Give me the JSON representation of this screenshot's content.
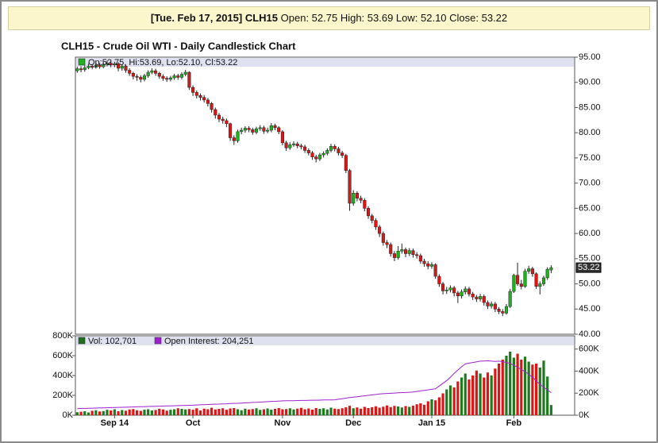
{
  "header": {
    "date": "[Tue. Feb 17, 2015]",
    "symbol": "CLH15",
    "quote": "Open: 52.75 High: 53.69 Low: 52.10 Close: 53.22"
  },
  "chart_data": {
    "type": "candlestick",
    "title": "CLH15 - Crude Oil WTI - Daily Candlestick Chart",
    "legend_price": "Op:52.75, Hi:53.69, Lo:52.10, Cl:53.22",
    "up_color": "#22b022",
    "down_color": "#dd1515",
    "xlim": [
      -0.5,
      133.3
    ],
    "xticks": [
      {
        "value": 10,
        "label": "Sep 14"
      },
      {
        "value": 31,
        "label": "Oct"
      },
      {
        "value": 55,
        "label": "Nov"
      },
      {
        "value": 74,
        "label": "Dec"
      },
      {
        "value": 95,
        "label": "Jan 15"
      },
      {
        "value": 117,
        "label": "Feb"
      }
    ],
    "ylim": [
      40,
      95
    ],
    "yticks": [
      {
        "value": 40,
        "label": "40.00"
      },
      {
        "value": 45,
        "label": "45.00"
      },
      {
        "value": 50,
        "label": "50.00"
      },
      {
        "value": 55,
        "label": "55.00"
      },
      {
        "value": 60,
        "label": "60.00"
      },
      {
        "value": 65,
        "label": "65.00"
      },
      {
        "value": 70,
        "label": "70.00"
      },
      {
        "value": 75,
        "label": "75.00"
      },
      {
        "value": 80,
        "label": "80.00"
      },
      {
        "value": 85,
        "label": "85.00"
      },
      {
        "value": 90,
        "label": "90.00"
      },
      {
        "value": 95,
        "label": "95.00"
      }
    ],
    "open": [
      92.3,
      92.7,
      92.5,
      92.9,
      93.2,
      93.0,
      93.4,
      93.1,
      93.6,
      93.8,
      93.5,
      93.7,
      92.8,
      93.2,
      92.4,
      91.8,
      91.2,
      91.0,
      90.6,
      91.3,
      92.0,
      92.3,
      91.8,
      91.2,
      90.8,
      90.6,
      90.9,
      91.3,
      91.0,
      91.6,
      92.0,
      89.0,
      88.0,
      87.4,
      87.0,
      86.5,
      85.8,
      84.6,
      83.5,
      82.7,
      82.4,
      81.8,
      79.0,
      78.4,
      80.2,
      80.5,
      80.9,
      80.6,
      80.1,
      80.8,
      81.0,
      80.3,
      80.5,
      81.4,
      81.0,
      80.2,
      78.0,
      77.0,
      77.6,
      77.8,
      77.4,
      77.2,
      76.5,
      76.0,
      75.2,
      74.8,
      75.6,
      75.9,
      76.5,
      77.3,
      76.8,
      76.0,
      75.5,
      72.5,
      66.0,
      68.0,
      67.0,
      66.6,
      65.0,
      63.5,
      62.6,
      61.3,
      60.0,
      58.2,
      57.8,
      56.0,
      55.2,
      56.5,
      56.8,
      56.0,
      56.6,
      55.8,
      55.6,
      54.5,
      54.0,
      53.5,
      53.8,
      51.5,
      50.0,
      48.6,
      48.8,
      49.2,
      48.2,
      47.6,
      48.4,
      49.0,
      48.0,
      47.4,
      47.0,
      47.5,
      46.3,
      45.6,
      46.0,
      45.0,
      44.5,
      44.2,
      45.5,
      48.5,
      51.7,
      50.0,
      49.5,
      52.5,
      53.0,
      52.0,
      49.5,
      50.0,
      51.2,
      52.75
    ],
    "high": [
      93.1,
      93.2,
      93.4,
      93.7,
      93.6,
      93.9,
      93.8,
      94.0,
      94.3,
      94.2,
      94.1,
      94.0,
      93.6,
      93.5,
      92.8,
      92.1,
      91.6,
      91.4,
      91.7,
      92.4,
      92.8,
      92.7,
      92.1,
      91.6,
      91.2,
      91.3,
      91.7,
      91.7,
      92.0,
      92.5,
      92.2,
      89.4,
      88.4,
      87.8,
      87.5,
      86.9,
      86.1,
      85.0,
      83.9,
      83.2,
      82.8,
      82.0,
      79.5,
      80.6,
      81.0,
      81.3,
      81.3,
      81.0,
      81.2,
      81.5,
      81.4,
      81.0,
      81.9,
      81.8,
      81.3,
      80.5,
      78.4,
      78.1,
      78.3,
      78.2,
      77.8,
      77.6,
      76.9,
      76.4,
      75.6,
      76.0,
      76.3,
      76.9,
      77.8,
      77.7,
      77.2,
      76.4,
      75.8,
      72.8,
      68.6,
      68.4,
      67.5,
      67.0,
      65.4,
      63.9,
      63.0,
      61.7,
      60.4,
      58.7,
      58.2,
      56.5,
      57.5,
      58.0,
      57.2,
      57.1,
      57.0,
      56.3,
      56.0,
      55.0,
      54.5,
      54.3,
      54.1,
      51.9,
      50.4,
      49.4,
      49.7,
      49.6,
      48.6,
      48.9,
      49.5,
      49.4,
      48.4,
      47.8,
      48.0,
      47.9,
      46.7,
      46.5,
      46.4,
      45.4,
      45.0,
      46.0,
      49.0,
      52.0,
      54.2,
      50.8,
      53.0,
      53.6,
      53.4,
      52.3,
      50.5,
      51.6,
      53.3,
      53.69
    ],
    "low": [
      91.9,
      92.0,
      92.1,
      92.6,
      92.6,
      92.7,
      92.7,
      92.8,
      93.2,
      93.0,
      93.0,
      92.2,
      92.3,
      91.9,
      91.3,
      90.6,
      90.3,
      90.0,
      90.2,
      90.9,
      91.6,
      91.3,
      90.7,
      90.3,
      90.1,
      90.2,
      90.5,
      90.5,
      90.6,
      91.2,
      88.5,
      87.3,
      86.8,
      86.4,
      86.0,
      85.2,
      84.0,
      82.8,
      82.1,
      81.8,
      81.1,
      78.4,
      77.6,
      78.0,
      79.7,
      80.0,
      80.1,
      79.6,
      79.7,
      80.4,
      79.8,
      79.9,
      80.1,
      80.5,
      79.7,
      77.5,
      76.4,
      76.6,
      77.2,
      76.9,
      76.7,
      76.0,
      75.5,
      74.6,
      74.1,
      74.4,
      75.1,
      75.5,
      76.1,
      76.3,
      75.5,
      75.0,
      72.0,
      64.5,
      65.5,
      66.4,
      66.0,
      64.4,
      62.9,
      62.0,
      60.7,
      59.3,
      57.6,
      57.1,
      55.4,
      54.5,
      54.8,
      56.0,
      55.3,
      55.5,
      55.2,
      55.0,
      54.0,
      53.4,
      52.9,
      53.0,
      51.0,
      49.4,
      47.9,
      48.0,
      48.3,
      47.5,
      46.2,
      47.1,
      47.9,
      47.5,
      46.8,
      46.4,
      46.5,
      45.7,
      45.0,
      45.1,
      44.4,
      44.0,
      43.6,
      43.9,
      45.2,
      48.2,
      49.6,
      48.9,
      49.2,
      52.0,
      51.4,
      49.0,
      47.9,
      49.6,
      50.8,
      52.1
    ],
    "close": [
      92.7,
      92.5,
      92.9,
      93.2,
      93.0,
      93.4,
      93.1,
      93.6,
      93.8,
      93.5,
      93.7,
      92.8,
      93.2,
      92.4,
      91.8,
      91.2,
      91.0,
      90.6,
      91.3,
      92.0,
      92.3,
      91.8,
      91.2,
      90.8,
      90.6,
      90.9,
      91.3,
      91.0,
      91.6,
      92.0,
      89.0,
      88.0,
      87.4,
      87.0,
      86.5,
      85.8,
      84.6,
      83.5,
      82.7,
      82.4,
      81.8,
      79.0,
      78.4,
      80.2,
      80.5,
      80.9,
      80.6,
      80.1,
      80.8,
      81.0,
      80.3,
      80.5,
      81.4,
      81.0,
      80.2,
      78.0,
      77.0,
      77.6,
      77.8,
      77.4,
      77.2,
      76.5,
      76.0,
      75.2,
      74.8,
      75.6,
      75.9,
      76.5,
      77.3,
      76.8,
      76.0,
      75.5,
      72.5,
      66.0,
      68.0,
      67.0,
      66.6,
      65.0,
      63.5,
      62.6,
      61.3,
      60.0,
      58.2,
      57.8,
      56.0,
      55.2,
      56.5,
      56.8,
      56.0,
      56.6,
      55.8,
      55.6,
      54.5,
      54.0,
      53.5,
      53.8,
      51.5,
      50.0,
      48.6,
      48.8,
      49.2,
      48.2,
      47.6,
      48.4,
      49.0,
      48.0,
      47.4,
      47.0,
      47.5,
      46.3,
      45.6,
      46.0,
      45.0,
      44.5,
      44.2,
      45.5,
      48.5,
      51.7,
      50.0,
      49.5,
      52.5,
      53.0,
      52.0,
      49.5,
      50.0,
      51.2,
      52.9,
      53.22
    ],
    "volume": {
      "label": "Vol: 102,701",
      "color": "#1f6f1f",
      "ylim": [
        0,
        800000
      ],
      "yticks": [
        {
          "value": 0,
          "label": "0K"
        },
        {
          "value": 200000,
          "label": "200K"
        },
        {
          "value": 400000,
          "label": "400K"
        },
        {
          "value": 600000,
          "label": "600K"
        },
        {
          "value": 800000,
          "label": "800K"
        }
      ],
      "values": [
        30000,
        35000,
        40000,
        28000,
        45000,
        50000,
        38000,
        42000,
        55000,
        48000,
        60000,
        40000,
        52000,
        45000,
        58000,
        62000,
        50000,
        44000,
        56000,
        60000,
        48000,
        52000,
        65000,
        58000,
        46000,
        55000,
        60000,
        70000,
        64000,
        58000,
        62000,
        55000,
        70000,
        48000,
        66000,
        60000,
        75000,
        58000,
        64000,
        70000,
        55000,
        68000,
        72000,
        60000,
        50000,
        66000,
        58000,
        62000,
        70000,
        54000,
        60000,
        68000,
        56000,
        64000,
        72000,
        60000,
        62000,
        70000,
        58000,
        66000,
        74000,
        60000,
        68000,
        56000,
        72000,
        64000,
        70000,
        58000,
        76000,
        66000,
        62000,
        70000,
        80000,
        95000,
        70000,
        78000,
        66000,
        84000,
        72000,
        80000,
        90000,
        76000,
        86000,
        98000,
        82000,
        94000,
        88000,
        78000,
        92000,
        84000,
        96000,
        110000,
        120000,
        105000,
        140000,
        160000,
        150000,
        180000,
        220000,
        260000,
        300000,
        280000,
        340000,
        380000,
        420000,
        360000,
        400000,
        450000,
        420000,
        380000,
        430000,
        400000,
        470000,
        520000,
        560000,
        600000,
        640000,
        580000,
        620000,
        560000,
        590000,
        540000,
        510000,
        520000,
        480000,
        550000,
        390000,
        102701
      ]
    },
    "open_interest": {
      "label": "Open Interest: 204,251",
      "color": "#a020d0",
      "y2lim": [
        0,
        720000
      ],
      "y2ticks": [
        {
          "value": 0,
          "label": "0K"
        },
        {
          "value": 200000,
          "label": "200K"
        },
        {
          "value": 400000,
          "label": "400K"
        },
        {
          "value": 600000,
          "label": "600K"
        }
      ],
      "values": [
        60000,
        61000,
        62000,
        63000,
        64000,
        65000,
        66000,
        67000,
        68000,
        69000,
        70000,
        71000,
        72000,
        73000,
        74000,
        75000,
        76000,
        77000,
        78000,
        79000,
        80000,
        81000,
        82000,
        83000,
        84000,
        85000,
        86000,
        87000,
        88000,
        89000,
        90000,
        91000,
        93000,
        94000,
        96000,
        97000,
        99000,
        100000,
        101000,
        103000,
        104000,
        106000,
        107000,
        108000,
        110000,
        112000,
        114000,
        116000,
        117000,
        119000,
        121000,
        123000,
        125000,
        126000,
        128000,
        130000,
        131000,
        131000,
        132000,
        133000,
        134000,
        134000,
        135000,
        136000,
        136000,
        137000,
        138000,
        139000,
        139000,
        140000,
        145000,
        150000,
        155000,
        160000,
        164000,
        168000,
        172000,
        176000,
        180000,
        184000,
        188000,
        192000,
        195000,
        197000,
        199000,
        201000,
        203000,
        205000,
        206000,
        208000,
        210000,
        215000,
        220000,
        225000,
        230000,
        235000,
        240000,
        265000,
        290000,
        315000,
        345000,
        380000,
        410000,
        440000,
        465000,
        472000,
        478000,
        484000,
        490000,
        492000,
        494000,
        490000,
        488000,
        490000,
        485000,
        478000,
        470000,
        452000,
        435000,
        415000,
        395000,
        370000,
        345000,
        310000,
        280000,
        255000,
        230000,
        204251
      ]
    }
  }
}
